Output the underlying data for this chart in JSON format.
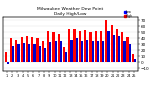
{
  "title": "Milwaukee Weather Dew Point",
  "subtitle": "Daily High/Low",
  "ylim": [
    -15,
    75
  ],
  "yticks": [
    -10,
    0,
    10,
    20,
    30,
    40,
    50,
    60,
    70
  ],
  "background_color": "#ffffff",
  "high_color": "#ff0000",
  "low_color": "#0000cc",
  "legend_low_color": "#0000ff",
  "legend_high_color": "#ff0000",
  "categories": [
    "1",
    "2",
    "3",
    "4",
    "5",
    "6",
    "7",
    "8",
    "9",
    "10",
    "11",
    "12",
    "13",
    "14",
    "15",
    "16",
    "17",
    "18",
    "19",
    "20",
    "21",
    "22",
    "23",
    "24",
    "25"
  ],
  "high_values": [
    18,
    40,
    38,
    42,
    44,
    42,
    40,
    36,
    52,
    50,
    48,
    26,
    56,
    55,
    52,
    54,
    50,
    52,
    52,
    70,
    62,
    56,
    50,
    42,
    14
  ],
  "low_values": [
    -2,
    28,
    30,
    32,
    30,
    30,
    28,
    24,
    34,
    36,
    36,
    18,
    38,
    40,
    36,
    38,
    36,
    36,
    36,
    52,
    46,
    44,
    36,
    30,
    6
  ],
  "figsize": [
    1.6,
    0.87
  ],
  "dpi": 100
}
